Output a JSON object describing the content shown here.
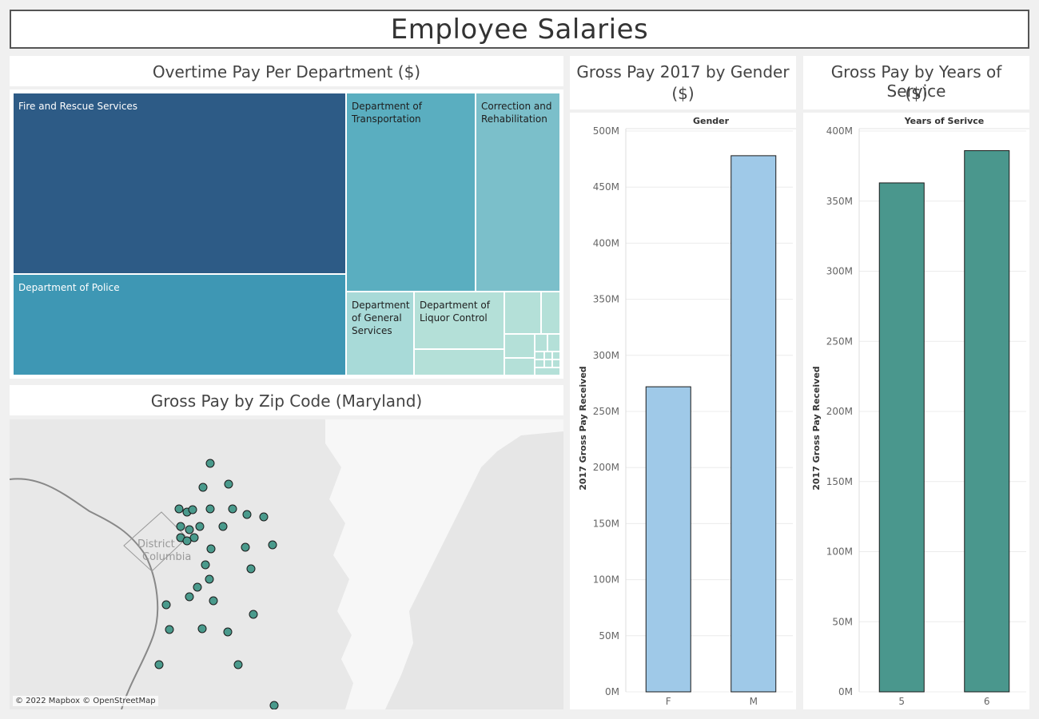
{
  "dashboard": {
    "title": "Employee Salaries"
  },
  "treemap": {
    "title": "Overtime Pay Per Department ($)",
    "cells": [
      {
        "label": "Fire and Rescue Services",
        "color": "#2d5b86",
        "text_color": "#ffffff"
      },
      {
        "label": "Department of Police",
        "color": "#3e97b4",
        "text_color": "#ffffff"
      },
      {
        "label": "Department of Transportation",
        "color": "#5aaec0",
        "text_color": "#1e1e1e"
      },
      {
        "label": "Correction and Rehabilitation",
        "color": "#7bbfca",
        "text_color": "#1e1e1e"
      },
      {
        "label": "Department of General Services",
        "color": "#a8dad8",
        "text_color": "#1e1e1e"
      },
      {
        "label": "Department of Liquor Control",
        "color": "#b4e0d8",
        "text_color": "#1e1e1e"
      }
    ]
  },
  "map": {
    "title": "Gross Pay by Zip Code (Maryland)",
    "place_label_1": "District",
    "place_label_2": "Columbia",
    "attribution": "© 2022 Mapbox © OpenStreetMap",
    "point_color": "#4a9a8c"
  },
  "gender_chart": {
    "title_line1": "Gross Pay 2017 by Gender",
    "title_line2": "($)"
  },
  "service_chart": {
    "title_line1": "Gross Pay by Years of Service",
    "title_line2": "($)"
  },
  "chart_data": [
    {
      "type": "bar",
      "title": "Gross Pay 2017 by Gender ($)",
      "header": "Gender",
      "categories": [
        "F",
        "M"
      ],
      "values": [
        272,
        478
      ],
      "ylabel": "2017 Gross Pay Received",
      "ylim": [
        0,
        500
      ],
      "yticks": [
        0,
        50,
        100,
        150,
        200,
        250,
        300,
        350,
        400,
        450,
        500
      ],
      "ytick_labels": [
        "0M",
        "50M",
        "100M",
        "150M",
        "200M",
        "250M",
        "300M",
        "350M",
        "400M",
        "450M",
        "500M"
      ],
      "color": "#9fc9e8"
    },
    {
      "type": "bar",
      "title": "Gross Pay by Years of Service ($)",
      "header": "Years of Serivce",
      "categories": [
        "5",
        "6"
      ],
      "values": [
        363,
        386
      ],
      "ylabel": "2017 Gross Pay Received",
      "ylim": [
        0,
        400
      ],
      "yticks": [
        0,
        50,
        100,
        150,
        200,
        250,
        300,
        350,
        400
      ],
      "ytick_labels": [
        "0M",
        "50M",
        "100M",
        "150M",
        "200M",
        "250M",
        "300M",
        "350M",
        "400M"
      ],
      "color": "#4a978d"
    }
  ]
}
